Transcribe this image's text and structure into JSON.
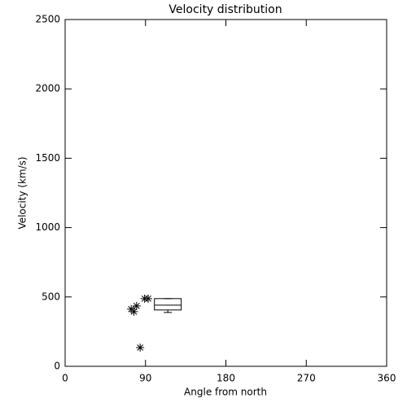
{
  "chart_data": {
    "type": "scatter",
    "title": "Velocity distribution",
    "x_label": "Angle from north",
    "y_label": "Velocity (km/s)",
    "series": [
      {
        "x": [
          74,
          77,
          80,
          84,
          89,
          93
        ],
        "values": [
          412,
          394,
          435,
          135,
          488,
          488
        ],
        "color": "#000000"
      }
    ],
    "box": {
      "x": [
        100,
        130
      ],
      "min": 388,
      "q1": 406,
      "median": 441,
      "q3": 488,
      "max": 488,
      "color": "#000000"
    },
    "xlim": [
      0,
      360
    ],
    "xticks": [
      0,
      90,
      180,
      270,
      360
    ],
    "ylim": [
      0,
      2500
    ],
    "yticks": [
      0,
      500,
      1000,
      1500,
      2000,
      2500
    ]
  }
}
